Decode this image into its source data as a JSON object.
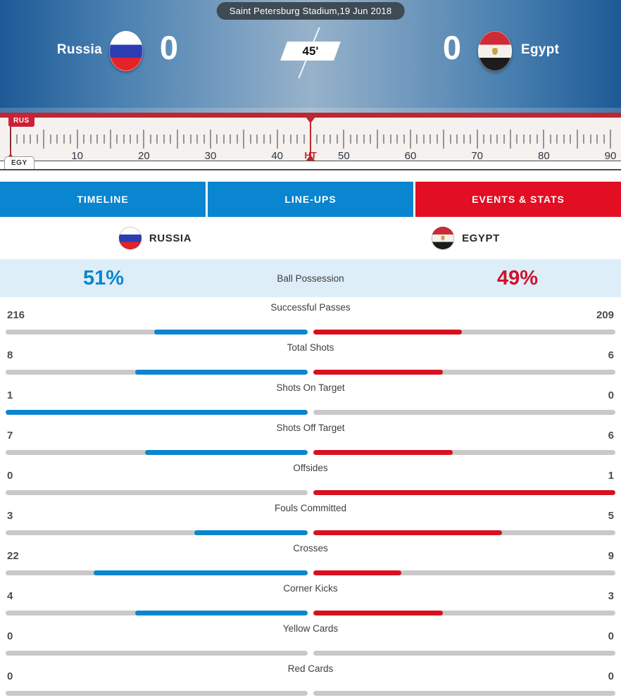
{
  "colors": {
    "tab_blue": "#0a85cf",
    "tab_red": "#e20e23",
    "bar_blue": "#0a85cf",
    "bar_red": "#d8101f",
    "bar_track": "#c9c9c9",
    "possession_bg": "#ddeef8",
    "possession_home": "#0a85cf",
    "possession_away": "#d0112b",
    "ruler_red": "#bf2730"
  },
  "header": {
    "venue": "Saint Petersburg Stadium,19 Jun 2018",
    "clock": "45'",
    "home": {
      "name": "Russia",
      "score": "0"
    },
    "away": {
      "name": "Egypt",
      "score": "0"
    }
  },
  "ruler": {
    "home_badge": "RUS",
    "away_badge": "EGY",
    "ht_label": "HT",
    "ht_minute": 45,
    "max_minute": 90,
    "major_step": 5,
    "labels": [
      10,
      20,
      30,
      40,
      50,
      60,
      70,
      80,
      90
    ]
  },
  "tabs": [
    {
      "label": "TIMELINE",
      "active": false
    },
    {
      "label": "LINE-UPS",
      "active": false
    },
    {
      "label": "EVENTS & STATS",
      "active": true
    }
  ],
  "teams_row": {
    "home": "RUSSIA",
    "away": "EGYPT"
  },
  "possession": {
    "label": "Ball Possession",
    "home": "51%",
    "away": "49%"
  },
  "stats": [
    {
      "label": "Successful Passes",
      "home": 216,
      "away": 209
    },
    {
      "label": "Total Shots",
      "home": 8,
      "away": 6
    },
    {
      "label": "Shots On Target",
      "home": 1,
      "away": 0
    },
    {
      "label": "Shots Off Target",
      "home": 7,
      "away": 6
    },
    {
      "label": "Offsides",
      "home": 0,
      "away": 1
    },
    {
      "label": "Fouls Committed",
      "home": 3,
      "away": 5
    },
    {
      "label": "Crosses",
      "home": 22,
      "away": 9
    },
    {
      "label": "Corner Kicks",
      "home": 4,
      "away": 3
    },
    {
      "label": "Yellow Cards",
      "home": 0,
      "away": 0
    },
    {
      "label": "Red Cards",
      "home": 0,
      "away": 0
    }
  ]
}
